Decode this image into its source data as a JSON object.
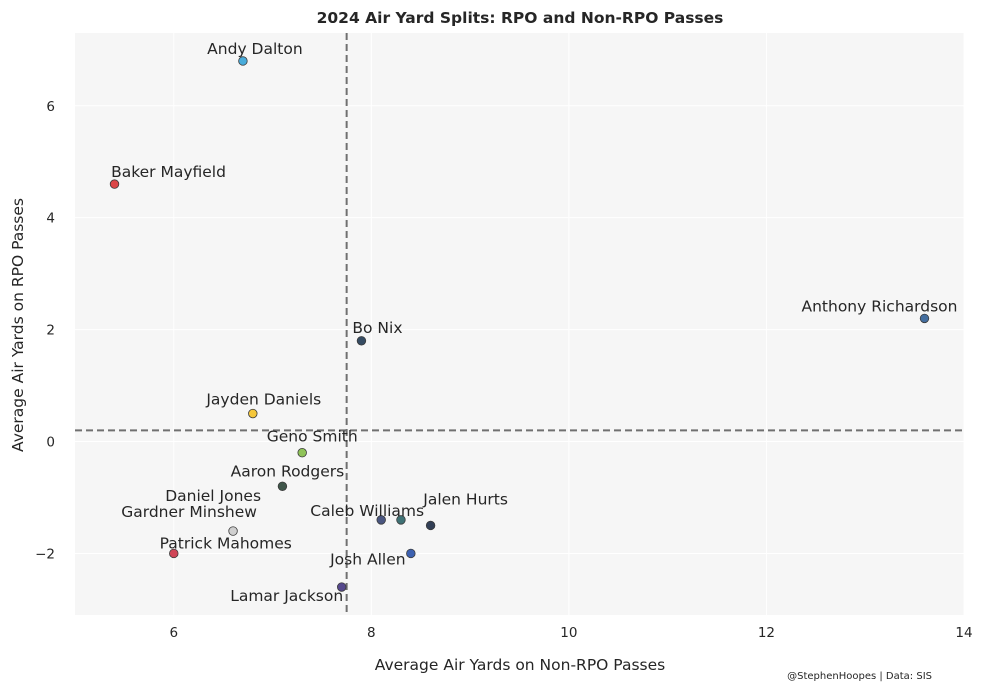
{
  "chart_data": {
    "type": "scatter",
    "title": "2024 Air Yard Splits: RPO and Non-RPO Passes",
    "xlabel": "Average Air Yards on Non-RPO Passes",
    "ylabel": "Average Air Yards on RPO Passes",
    "xlim": [
      5,
      14
    ],
    "ylim": [
      -3.1,
      7.3
    ],
    "xticks": [
      6,
      8,
      10,
      12,
      14
    ],
    "xtick_labels": [
      "6",
      "8",
      "10",
      "12",
      "14"
    ],
    "yticks": [
      -2,
      0,
      2,
      4,
      6
    ],
    "ytick_labels": [
      "−2",
      "0",
      "2",
      "4",
      "6"
    ],
    "grid": true,
    "reference_lines": {
      "x": 7.75,
      "y": 0.2
    },
    "colors": {
      "background": "#f6f6f6",
      "grid": "#ffffff",
      "reference_line": "#707070"
    },
    "points": [
      {
        "label": "Andy Dalton",
        "x": 6.7,
        "y": 6.8,
        "color": "#2a9fd6"
      },
      {
        "label": "Baker Mayfield",
        "x": 5.4,
        "y": 4.6,
        "color": "#d62728"
      },
      {
        "label": "Anthony Richardson",
        "x": 13.6,
        "y": 2.2,
        "color": "#24568f"
      },
      {
        "label": "Bo Nix",
        "x": 7.9,
        "y": 1.8,
        "color": "#132d48"
      },
      {
        "label": "Jayden Daniels",
        "x": 6.8,
        "y": 0.5,
        "color": "#f5be1a"
      },
      {
        "label": "Geno Smith",
        "x": 7.3,
        "y": -0.2,
        "color": "#7dba3c"
      },
      {
        "label": "Aaron Rodgers",
        "x": 7.1,
        "y": -0.8,
        "color": "#1f3a2c"
      },
      {
        "label": "Daniel Jones",
        "x": 6.6,
        "y": -1.6,
        "color": "#c8c8c8"
      },
      {
        "label": "Caleb Williams",
        "x": 8.1,
        "y": -1.4,
        "color": "#2b3a6b"
      },
      {
        "label": "Jalen Hurts",
        "x": 8.6,
        "y": -1.5,
        "color": "#0f1f3a"
      },
      {
        "label": "Gardner Minshew",
        "x": 8.3,
        "y": -1.4,
        "color": "#1e5a5e"
      },
      {
        "label": "Patrick Mahomes",
        "x": 6.0,
        "y": -2.0,
        "color": "#c8243a"
      },
      {
        "label": "Josh Allen",
        "x": 8.4,
        "y": -2.0,
        "color": "#1c47a3"
      },
      {
        "label": "Lamar Jackson",
        "x": 7.7,
        "y": -2.6,
        "color": "#3a2a7a"
      }
    ]
  },
  "footer": {
    "credit": "@StephenHoopes | Data: SIS"
  }
}
